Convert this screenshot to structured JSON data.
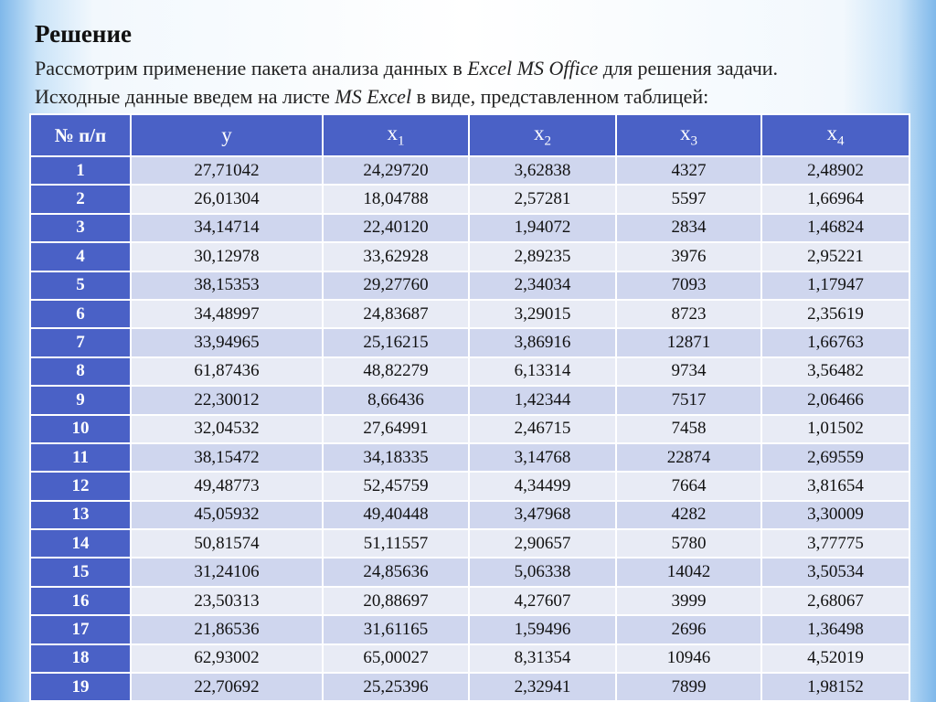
{
  "header": {
    "title": "Решение",
    "lines": [
      [
        "Рассмотрим применение пакета анализа данных в ",
        "Excel MS Office",
        " для решения задачи."
      ],
      [
        "Исходные данные введем на листе ",
        "MS Excel",
        " в виде, представленном таблицей:"
      ]
    ]
  },
  "table": {
    "headers": [
      "№ п/п",
      "y",
      {
        "text": "x",
        "sub": "1"
      },
      {
        "text": "x",
        "sub": "2"
      },
      {
        "text": "x",
        "sub": "3"
      },
      {
        "text": "x",
        "sub": "4"
      }
    ],
    "rows": [
      [
        "1",
        "27,71042",
        "24,29720",
        "3,62838",
        "4327",
        "2,48902"
      ],
      [
        "2",
        "26,01304",
        "18,04788",
        "2,57281",
        "5597",
        "1,66964"
      ],
      [
        "3",
        "34,14714",
        "22,40120",
        "1,94072",
        "2834",
        "1,46824"
      ],
      [
        "4",
        "30,12978",
        "33,62928",
        "2,89235",
        "3976",
        "2,95221"
      ],
      [
        "5",
        "38,15353",
        "29,27760",
        "2,34034",
        "7093",
        "1,17947"
      ],
      [
        "6",
        "34,48997",
        "24,83687",
        "3,29015",
        "8723",
        "2,35619"
      ],
      [
        "7",
        "33,94965",
        "25,16215",
        "3,86916",
        "12871",
        "1,66763"
      ],
      [
        "8",
        "61,87436",
        "48,82279",
        "6,13314",
        "9734",
        "3,56482"
      ],
      [
        "9",
        "22,30012",
        "8,66436",
        "1,42344",
        "7517",
        "2,06466"
      ],
      [
        "10",
        "32,04532",
        "27,64991",
        "2,46715",
        "7458",
        "1,01502"
      ],
      [
        "11",
        "38,15472",
        "34,18335",
        "3,14768",
        "22874",
        "2,69559"
      ],
      [
        "12",
        "49,48773",
        "52,45759",
        "4,34499",
        "7664",
        "3,81654"
      ],
      [
        "13",
        "45,05932",
        "49,40448",
        "3,47968",
        "4282",
        "3,30009"
      ],
      [
        "14",
        "50,81574",
        "51,11557",
        "2,90657",
        "5780",
        "3,77775"
      ],
      [
        "15",
        "31,24106",
        "24,85636",
        "5,06338",
        "14042",
        "3,50534"
      ],
      [
        "16",
        "23,50313",
        "20,88697",
        "4,27607",
        "3999",
        "2,68067"
      ],
      [
        "17",
        "21,86536",
        "31,61165",
        "1,59496",
        "2696",
        "1,36498"
      ],
      [
        "18",
        "62,93002",
        "65,00027",
        "8,31354",
        "10946",
        "4,52019"
      ],
      [
        "19",
        "22,70692",
        "25,25396",
        "2,32941",
        "7899",
        "1,98152"
      ]
    ]
  }
}
